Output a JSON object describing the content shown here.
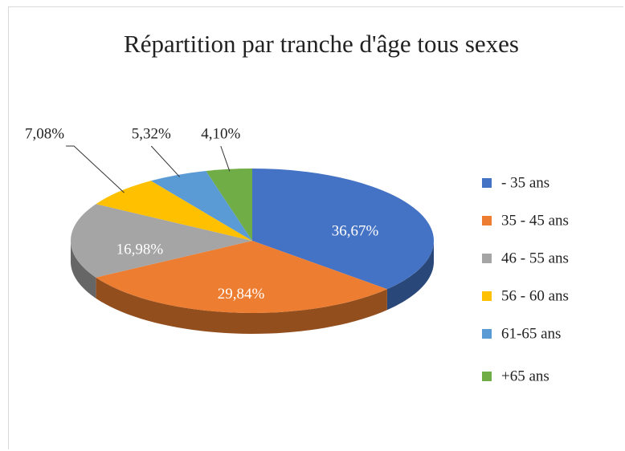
{
  "chart_data": {
    "type": "pie",
    "title": "Répartition par tranche d'âge tous sexes",
    "categories": [
      "- 35 ans",
      "35 - 45 ans",
      "46 - 55 ans",
      "56 - 60 ans",
      "61-65 ans",
      "+65 ans"
    ],
    "values": [
      36.67,
      29.84,
      16.98,
      7.08,
      5.32,
      4.1
    ],
    "value_labels": [
      "36,67%",
      "29,84%",
      "16,98%",
      "7,08%",
      "5,32%",
      "4,10%"
    ],
    "colors": [
      "#4472c4",
      "#ed7d31",
      "#a5a5a5",
      "#ffc000",
      "#5b9bd5",
      "#70ad47"
    ],
    "legend": "right"
  }
}
